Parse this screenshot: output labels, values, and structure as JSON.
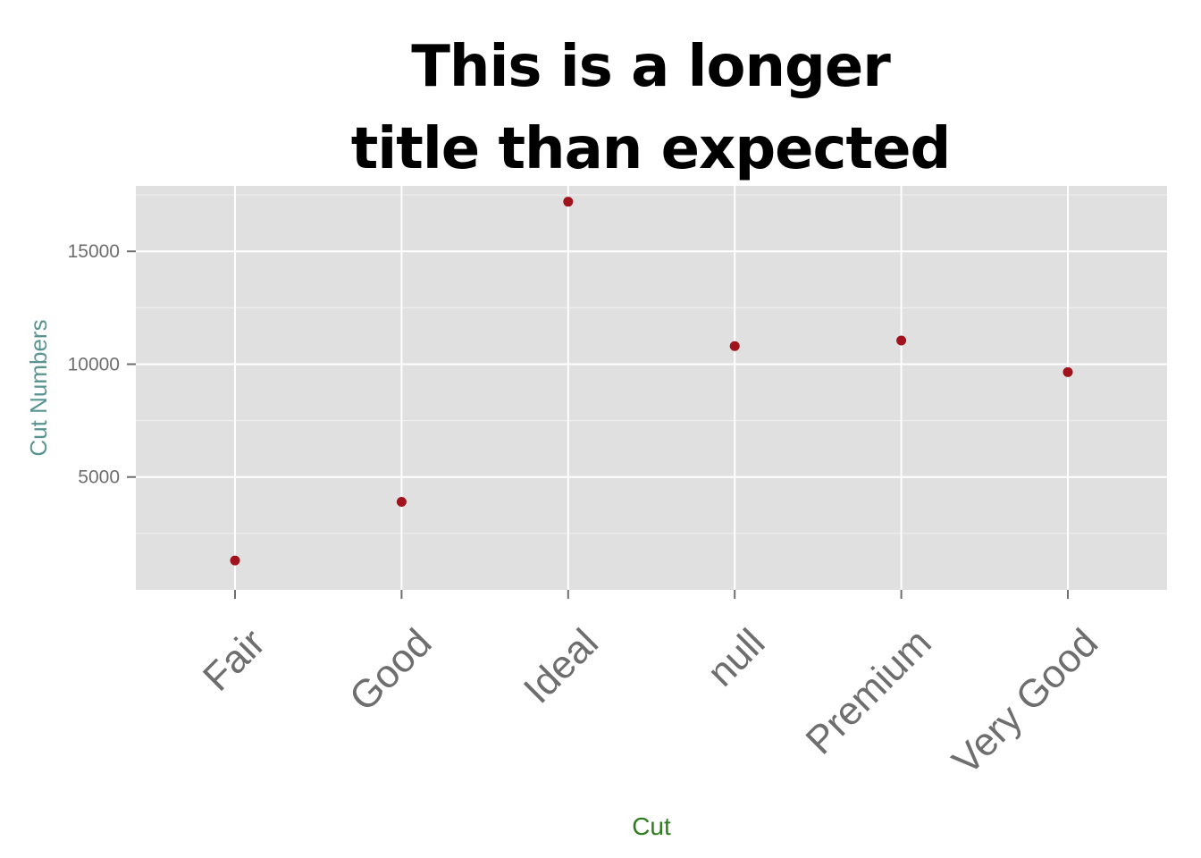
{
  "chart_data": {
    "type": "scatter",
    "title_lines": [
      "This is a longer",
      "title than expected"
    ],
    "xlabel": "Cut",
    "ylabel": "Cut Numbers",
    "categories": [
      "Fair",
      "Good",
      "Ideal",
      "null",
      "Premium",
      "Very Good"
    ],
    "values": [
      1300,
      3900,
      17200,
      10800,
      11050,
      9650
    ],
    "ylim": [
      0,
      17900
    ],
    "yticks": [
      5000,
      10000,
      15000
    ],
    "ytick_labels": [
      "5000",
      "10000",
      "15000"
    ],
    "grid": true,
    "legend": "none",
    "colors": {
      "point": "#a0131c",
      "panel": "#e0e0e0",
      "grid": "#ffffff",
      "xlabel": "#2e7d1e",
      "ylabel": "#5a9490",
      "tick": "#6e6e6e"
    }
  }
}
